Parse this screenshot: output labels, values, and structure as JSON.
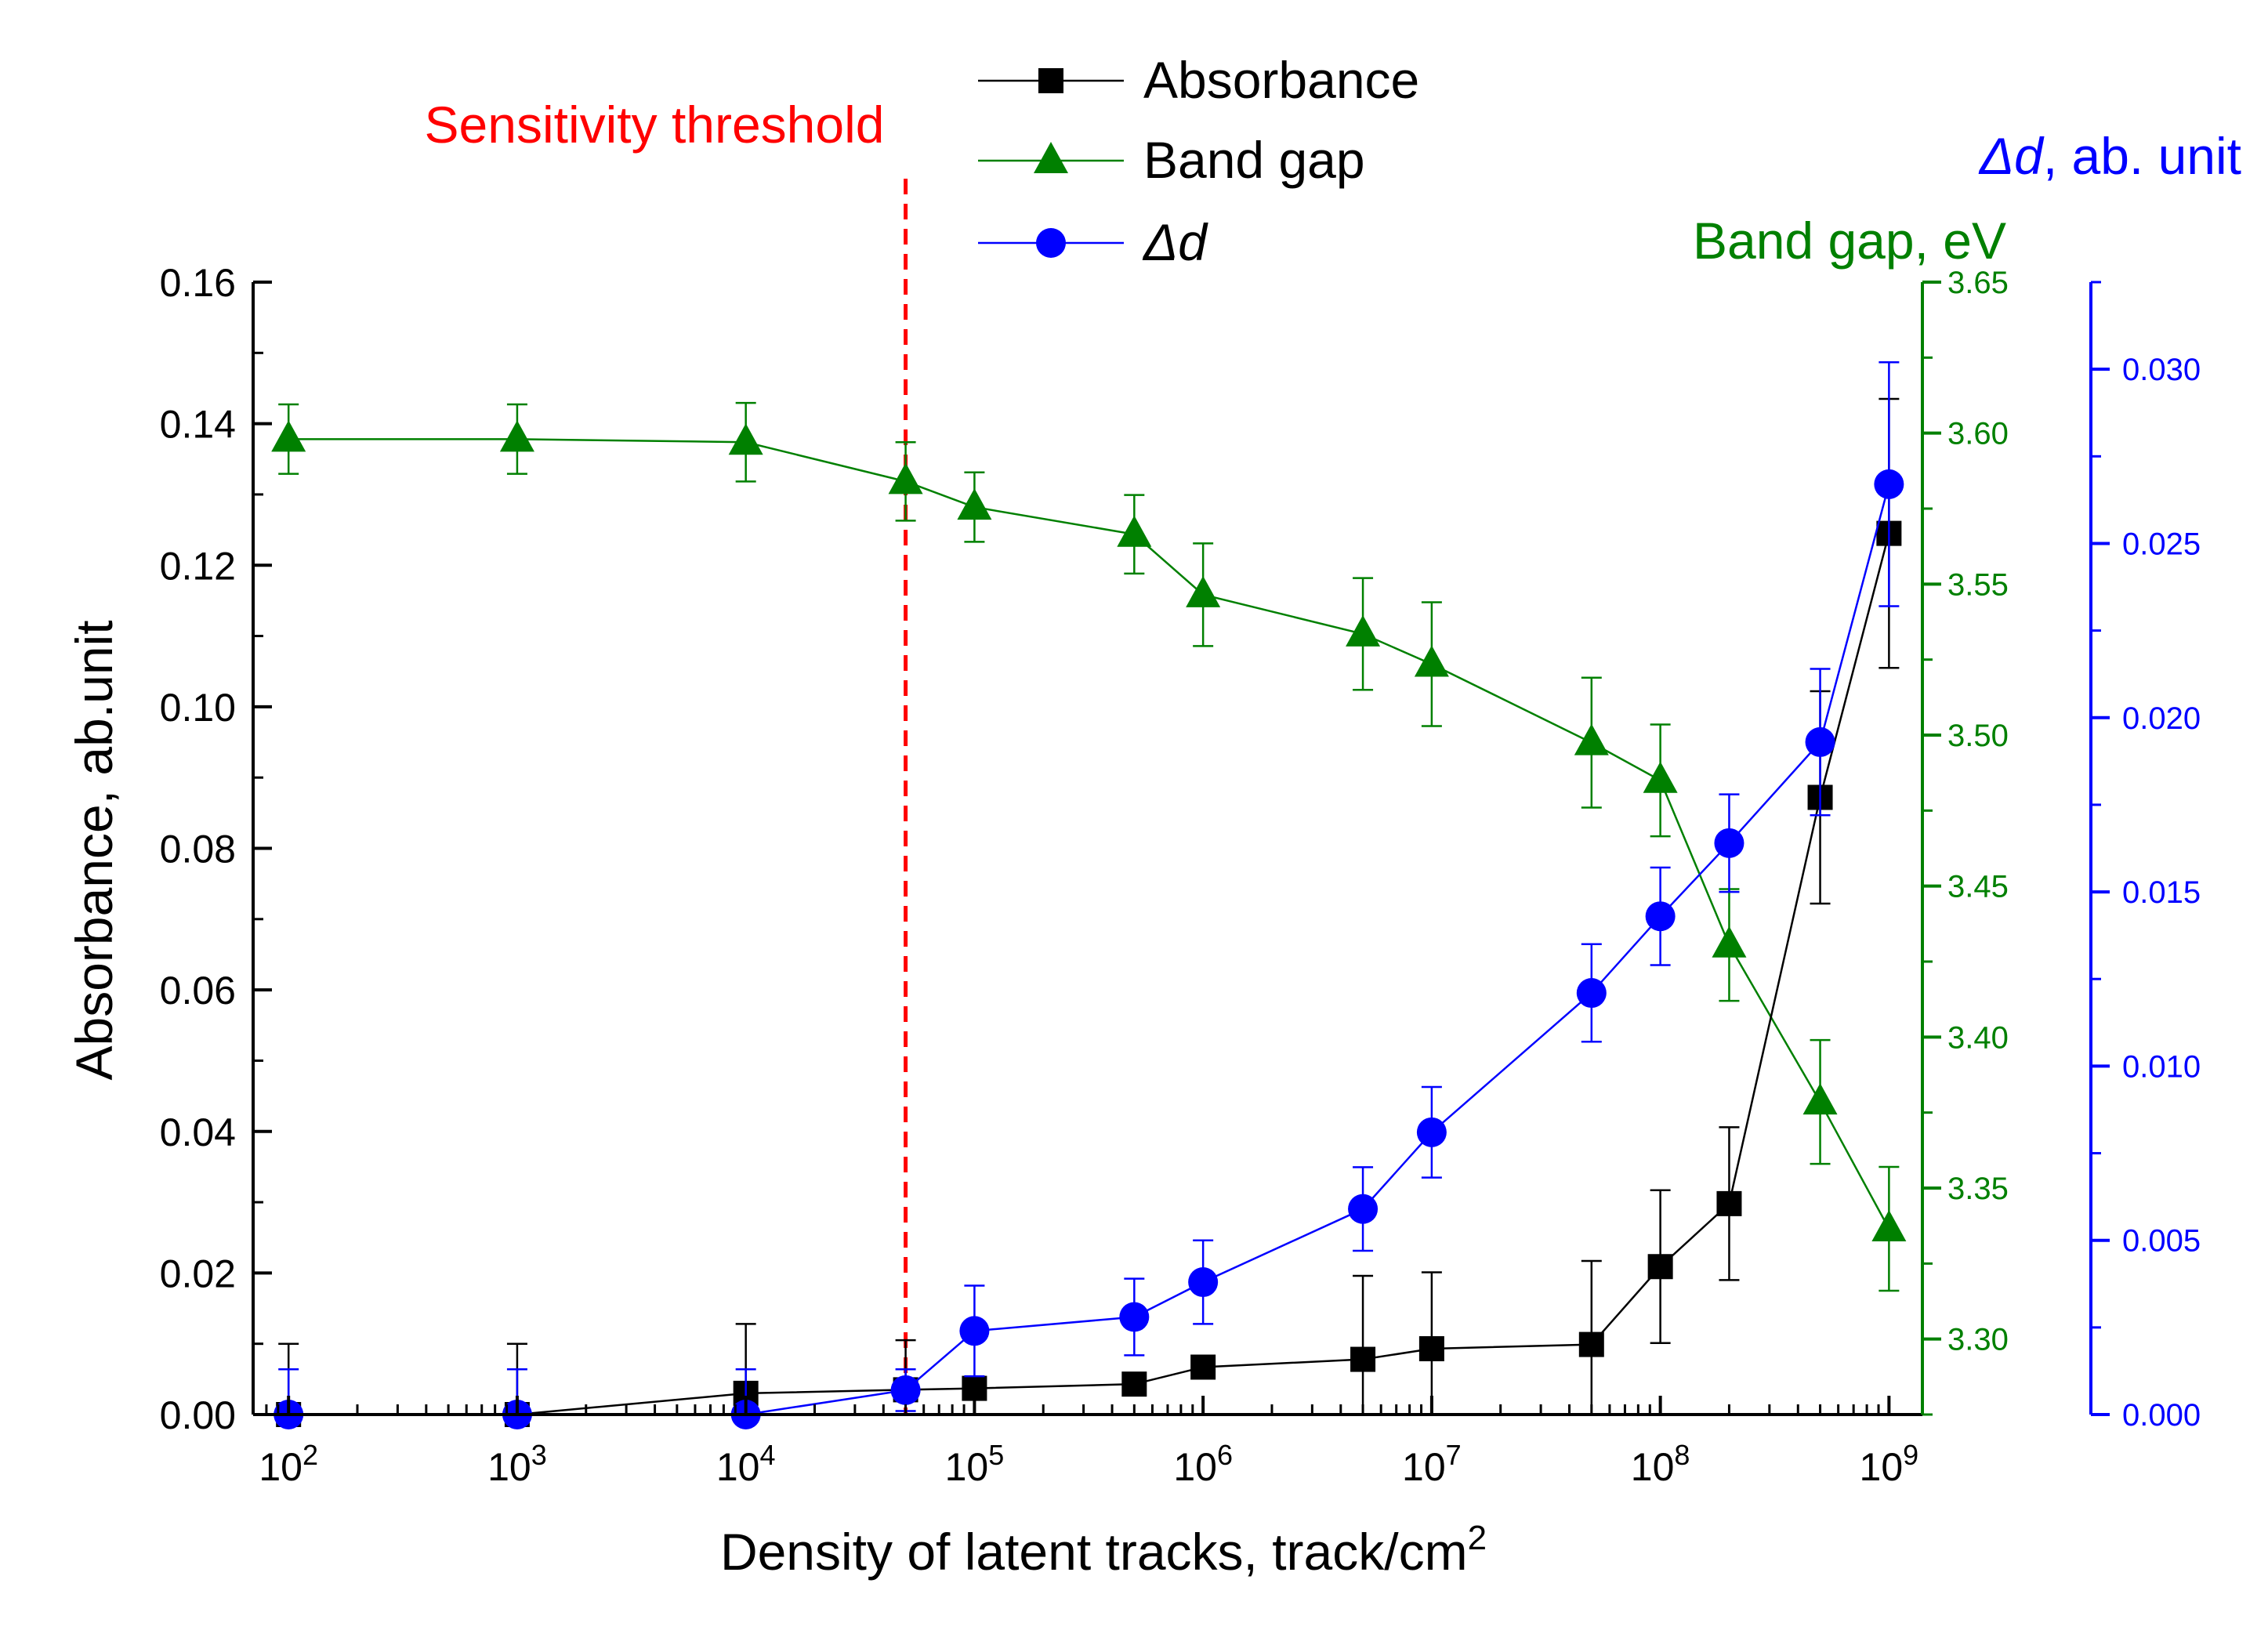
{
  "chart_data": {
    "type": "line",
    "annotation": "Sensitivity threshold",
    "threshold_x": 50000,
    "x_axis": {
      "label": "Density of latent tracks, track/cm",
      "label_superscript": "2",
      "scale": "log",
      "range": [
        70,
        1400000000
      ],
      "ticks": [
        {
          "value": 100,
          "base": "10",
          "exp": "2"
        },
        {
          "value": 1000,
          "base": "10",
          "exp": "3"
        },
        {
          "value": 10000,
          "base": "10",
          "exp": "4"
        },
        {
          "value": 100000,
          "base": "10",
          "exp": "5"
        },
        {
          "value": 1000000,
          "base": "10",
          "exp": "6"
        },
        {
          "value": 10000000,
          "base": "10",
          "exp": "7"
        },
        {
          "value": 100000000,
          "base": "10",
          "exp": "8"
        },
        {
          "value": 1000000000,
          "base": "10",
          "exp": "9"
        }
      ]
    },
    "y_left": {
      "label": "Absorbance, ab.unit",
      "range": [
        0,
        0.16
      ],
      "ticks": [
        "0.00",
        "0.02",
        "0.04",
        "0.06",
        "0.08",
        "0.10",
        "0.12",
        "0.14",
        "0.16"
      ],
      "color": "#000000"
    },
    "y_right1": {
      "label": "Band gap, eV",
      "range": [
        3.275,
        3.65
      ],
      "ticks": [
        "3.30",
        "3.35",
        "3.40",
        "3.45",
        "3.50",
        "3.55",
        "3.60",
        "3.65"
      ],
      "color": "#008000"
    },
    "y_right2": {
      "label_italic": "Δd",
      "label_rest": ", ab. unit",
      "range": [
        0,
        0.0325
      ],
      "ticks": [
        "0.000",
        "0.005",
        "0.010",
        "0.015",
        "0.020",
        "0.025",
        "0.030"
      ],
      "color": "#0000ff"
    },
    "legend": {
      "position": "top-center",
      "items": [
        {
          "label": "Absorbance",
          "italic": false,
          "marker": "square",
          "color": "#000000"
        },
        {
          "label": "Band gap",
          "italic": false,
          "marker": "triangle",
          "color": "#008000"
        },
        {
          "label": "Δd",
          "italic": true,
          "marker": "circle",
          "color": "#0000ff"
        }
      ]
    },
    "series": [
      {
        "name": "Absorbance",
        "axis": "left",
        "marker": "square",
        "color": "#000000",
        "x": [
          100,
          1000,
          10000,
          50000,
          100000,
          500000,
          1000000,
          5000000,
          10000000,
          50000000,
          100000000,
          200000000,
          500000000,
          1000000000
        ],
        "y": [
          0.0,
          0.0,
          0.003,
          0.0035,
          0.0037,
          0.0043,
          0.0067,
          0.0078,
          0.0093,
          0.0099,
          0.0209,
          0.0298,
          0.0872,
          0.1245
        ],
        "err": [
          0.01,
          0.01,
          0.0098,
          0.007,
          0.0,
          0.0,
          0.0,
          0.0118,
          0.0108,
          0.0118,
          0.0108,
          0.0108,
          0.015,
          0.019
        ]
      },
      {
        "name": "Band gap",
        "axis": "right1",
        "marker": "triangle",
        "color": "#008000",
        "x": [
          100,
          1000,
          10000,
          50000,
          100000,
          500000,
          1000000,
          5000000,
          10000000,
          50000000,
          100000000,
          200000000,
          500000000,
          1000000000
        ],
        "y": [
          3.598,
          3.598,
          3.597,
          3.584,
          3.5755,
          3.5665,
          3.5465,
          3.5335,
          3.5235,
          3.4975,
          3.485,
          3.4305,
          3.3785,
          3.3365
        ],
        "err": [
          0.0115,
          0.0115,
          0.013,
          0.013,
          0.0115,
          0.013,
          0.017,
          0.0185,
          0.0205,
          0.0215,
          0.0185,
          0.0185,
          0.0205,
          0.0205
        ]
      },
      {
        "name": "Δd",
        "axis": "right2",
        "marker": "circle",
        "color": "#0000ff",
        "x": [
          100,
          1000,
          10000,
          50000,
          100000,
          500000,
          1000000,
          5000000,
          10000000,
          50000000,
          100000000,
          200000000,
          500000000,
          1000000000
        ],
        "y": [
          0.0,
          0.0,
          0.0,
          0.0007,
          0.0024,
          0.0028,
          0.0038,
          0.0059,
          0.0081,
          0.0121,
          0.0143,
          0.0164,
          0.0193,
          0.0267
        ],
        "err": [
          0.0013,
          0.0013,
          0.0013,
          0.0006,
          0.0013,
          0.0011,
          0.0012,
          0.0012,
          0.0013,
          0.0014,
          0.0014,
          0.0014,
          0.0021,
          0.0035
        ]
      }
    ]
  }
}
